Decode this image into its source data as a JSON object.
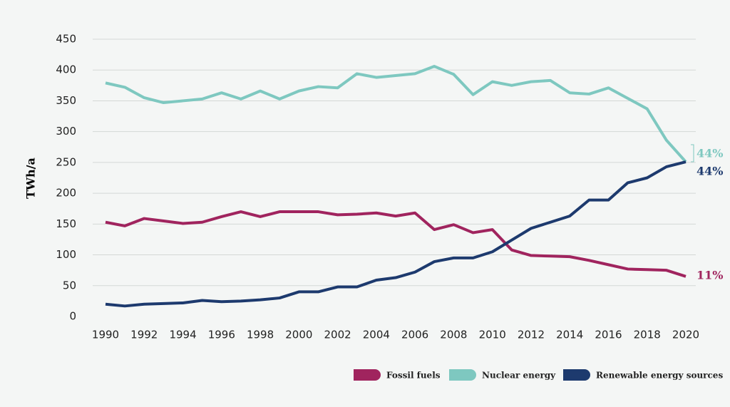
{
  "chart_data": {
    "type": "line",
    "y_label": "TWh/a",
    "x": [
      1990,
      1991,
      1992,
      1993,
      1994,
      1995,
      1996,
      1997,
      1998,
      1999,
      2000,
      2001,
      2002,
      2003,
      2004,
      2005,
      2006,
      2007,
      2008,
      2009,
      2010,
      2011,
      2012,
      2013,
      2014,
      2015,
      2016,
      2017,
      2018,
      2019,
      2020
    ],
    "series": [
      {
        "name": "Fossil fuels",
        "color": "#a0245e",
        "end_label": "11%",
        "values": [
          153,
          147,
          159,
          155,
          151,
          153,
          162,
          170,
          162,
          170,
          170,
          170,
          165,
          166,
          168,
          163,
          168,
          141,
          149,
          136,
          141,
          108,
          99,
          98,
          97,
          91,
          84,
          77,
          76,
          75,
          65
        ]
      },
      {
        "name": "Nuclear energy",
        "color": "#7ec8c0",
        "end_label": "44%",
        "values": [
          379,
          372,
          355,
          347,
          350,
          353,
          363,
          353,
          366,
          353,
          366,
          373,
          371,
          394,
          388,
          391,
          394,
          406,
          393,
          360,
          381,
          375,
          381,
          383,
          363,
          361,
          371,
          354,
          337,
          286,
          251
        ]
      },
      {
        "name": "Renewable energy sources",
        "color": "#1d3a6e",
        "end_label": "44%",
        "values": [
          20,
          17,
          20,
          21,
          22,
          26,
          24,
          25,
          27,
          30,
          40,
          40,
          48,
          48,
          59,
          63,
          72,
          89,
          95,
          95,
          105,
          124,
          143,
          153,
          163,
          189,
          189,
          217,
          225,
          243,
          251
        ]
      }
    ],
    "xlim": [
      1990,
      2020
    ],
    "xticks": [
      1990,
      1992,
      1994,
      1996,
      1998,
      2000,
      2002,
      2004,
      2006,
      2008,
      2010,
      2012,
      2014,
      2016,
      2018,
      2020
    ],
    "ylim": [
      0,
      450
    ],
    "yticks": [
      0,
      50,
      100,
      150,
      200,
      250,
      300,
      350,
      400,
      450
    ],
    "grid": true
  }
}
